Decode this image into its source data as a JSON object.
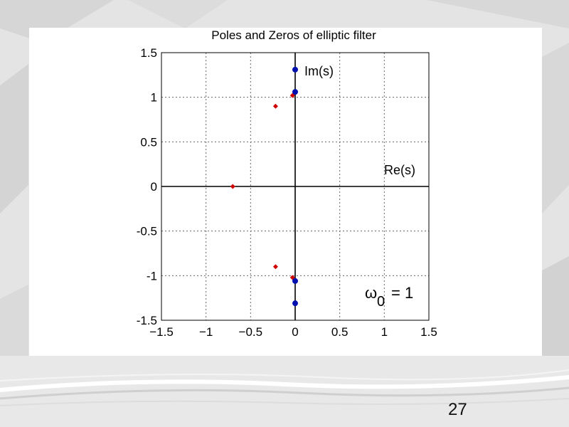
{
  "slide": {
    "page_number": "27"
  },
  "chart_data": {
    "type": "scatter",
    "title": "Poles and Zeros of elliptic filter",
    "xlabel": "",
    "ylabel": "",
    "xlim": [
      -1.5,
      1.5
    ],
    "ylim": [
      -1.5,
      1.5
    ],
    "grid": true,
    "x_ticks": [
      "-1.5",
      "-1",
      "-0.5",
      "0",
      "0.5",
      "1",
      "1.5"
    ],
    "y_ticks": [
      "1.5",
      "1",
      "0.5",
      "0",
      "-0.5",
      "-1",
      "-1.5"
    ],
    "series": [
      {
        "color": "#d00000",
        "marker": "diamond",
        "points": [
          {
            "x": -0.7,
            "y": 0.0
          },
          {
            "x": -0.22,
            "y": 0.9
          },
          {
            "x": -0.22,
            "y": -0.9
          },
          {
            "x": -0.03,
            "y": 1.02
          },
          {
            "x": -0.03,
            "y": -1.02
          }
        ]
      },
      {
        "color": "#0010b0",
        "marker": "circle",
        "points": [
          {
            "x": 0.0,
            "y": 1.31
          },
          {
            "x": 0.0,
            "y": 1.06
          },
          {
            "x": 0.0,
            "y": -1.06
          },
          {
            "x": 0.0,
            "y": -1.31
          }
        ]
      }
    ],
    "annotations": {
      "imag_axis_label": "Im(s)",
      "real_axis_label": "Re(s)",
      "omega_symbol": "ω",
      "omega_subscript": "0",
      "omega_value": "= 1"
    }
  }
}
